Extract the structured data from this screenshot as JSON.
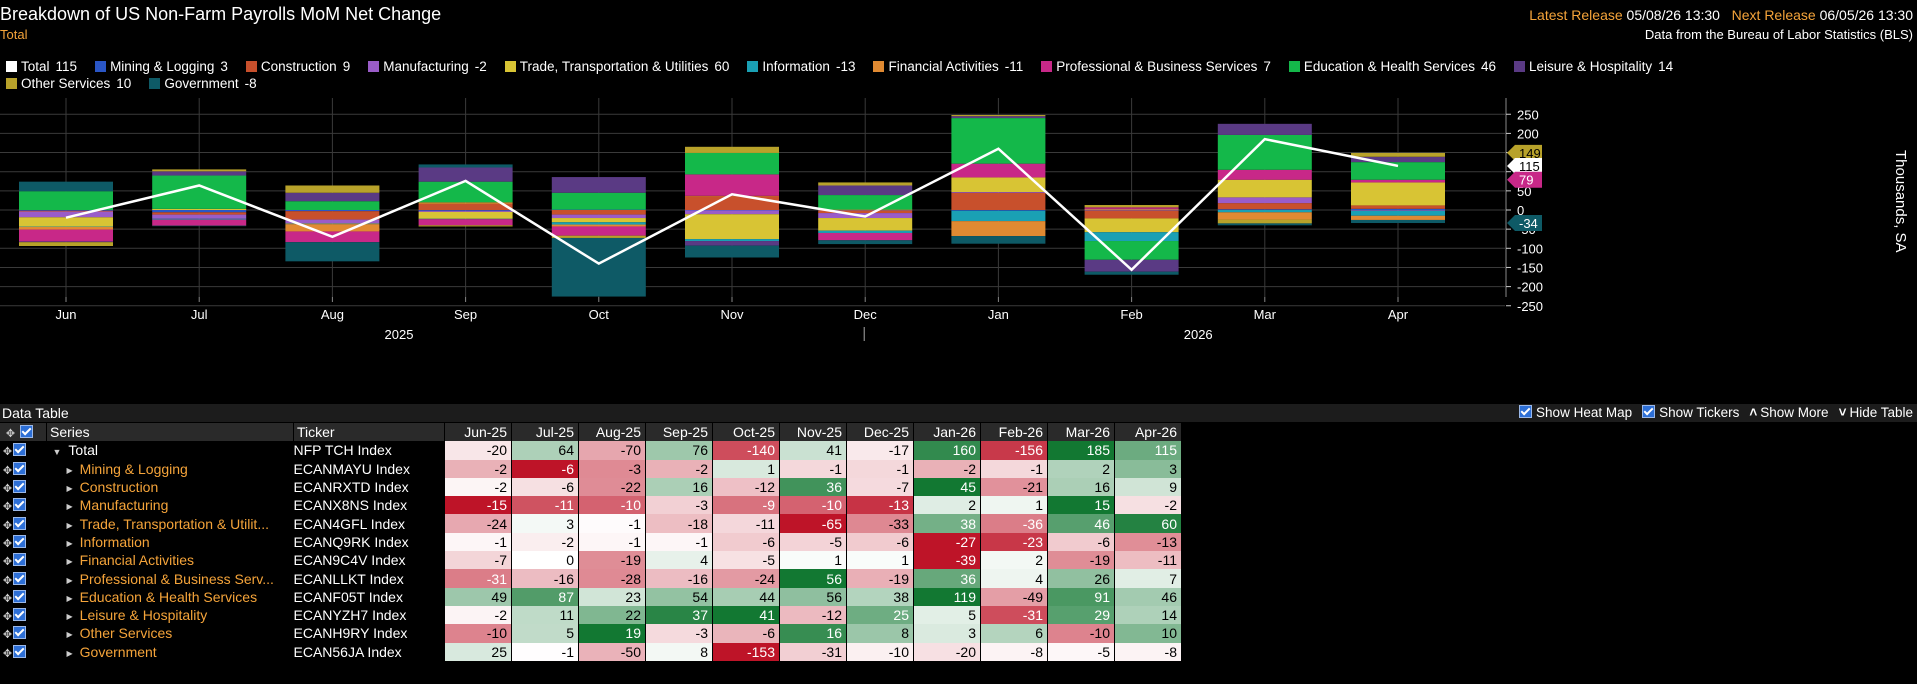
{
  "header": {
    "title": "Breakdown of US Non-Farm Payrolls MoM Net Change",
    "subtitle": "Total",
    "latest_label": "Latest Release",
    "latest_value": "05/08/26 13:30",
    "next_label": "Next Release",
    "next_value": "06/05/26 13:30",
    "source": "Data from the Bureau of Labor Statistics (BLS)"
  },
  "legend": [
    {
      "name": "Total",
      "value": "115",
      "color": "#ffffff"
    },
    {
      "name": "Mining & Logging",
      "value": "3",
      "color": "#2a56c6"
    },
    {
      "name": "Construction",
      "value": "9",
      "color": "#c8502c"
    },
    {
      "name": "Manufacturing",
      "value": "-2",
      "color": "#9a5cc8"
    },
    {
      "name": "Trade, Transportation & Utilities",
      "value": "60",
      "color": "#d8c434"
    },
    {
      "name": "Information",
      "value": "-13",
      "color": "#1aa0b4"
    },
    {
      "name": "Financial Activities",
      "value": "-11",
      "color": "#e08a32"
    },
    {
      "name": "Professional & Business Services",
      "value": "7",
      "color": "#c82888"
    },
    {
      "name": "Education & Health Services",
      "value": "46",
      "color": "#14b84a"
    },
    {
      "name": "Leisure & Hospitality",
      "value": "14",
      "color": "#5a3a84"
    },
    {
      "name": "Other Services",
      "value": "10",
      "color": "#b8a22a"
    },
    {
      "name": "Government",
      "value": "-8",
      "color": "#0e5a66"
    }
  ],
  "chart_data": {
    "type": "bar",
    "stacked": true,
    "categories": [
      "Jun",
      "Jul",
      "Aug",
      "Sep",
      "Oct",
      "Nov",
      "Dec",
      "Jan",
      "Feb",
      "Mar",
      "Apr"
    ],
    "year_labels": [
      {
        "label": "2025",
        "between": [
          "Aug",
          "Sep"
        ]
      },
      {
        "label": "2026",
        "between": [
          "Feb",
          "Mar"
        ]
      }
    ],
    "ylabel": "Thousands, SA",
    "ylim": [
      -260,
      260
    ],
    "yticks": [
      250,
      200,
      150,
      100,
      50,
      0,
      -50,
      -100,
      -150,
      -200,
      -250
    ],
    "ytick_labels": [
      "250",
      "200",
      "150",
      "100",
      "50",
      "0",
      "-50",
      "-100",
      "-150",
      "-200",
      "-250"
    ],
    "last_value_labels": [
      {
        "label": "149",
        "color": "#b8a22a",
        "text_color": "#000",
        "value": 149
      },
      {
        "label": "115",
        "color": "#ffffff",
        "text_color": "#000",
        "value": 115
      },
      {
        "label": "79",
        "color": "#c82888",
        "text_color": "#fff",
        "value": 79
      },
      {
        "label": "-34",
        "color": "#0e5a66",
        "text_color": "#fff",
        "value": -34
      }
    ],
    "line_series": {
      "name": "Total",
      "color": "#ffffff",
      "values": [
        -20,
        64,
        -70,
        76,
        -140,
        41,
        -17,
        160,
        -156,
        185,
        115
      ]
    },
    "series": [
      {
        "name": "Mining & Logging",
        "color": "#2a56c6",
        "values": [
          -2,
          -6,
          -3,
          -2,
          1,
          -1,
          -1,
          -2,
          -1,
          2,
          3
        ]
      },
      {
        "name": "Construction",
        "color": "#c8502c",
        "values": [
          -2,
          -6,
          -22,
          16,
          -12,
          36,
          -7,
          45,
          -21,
          16,
          9
        ]
      },
      {
        "name": "Manufacturing",
        "color": "#9a5cc8",
        "values": [
          -15,
          -11,
          -10,
          -3,
          -9,
          -10,
          -13,
          2,
          1,
          15,
          -2
        ]
      },
      {
        "name": "Trade, Transportation & Utilities",
        "color": "#d8c434",
        "values": [
          -24,
          3,
          -1,
          -18,
          -11,
          -65,
          -33,
          38,
          -36,
          46,
          60
        ]
      },
      {
        "name": "Information",
        "color": "#1aa0b4",
        "values": [
          -1,
          -2,
          -1,
          -1,
          -6,
          -5,
          -6,
          -27,
          -23,
          -6,
          -13
        ]
      },
      {
        "name": "Financial Activities",
        "color": "#e08a32",
        "values": [
          -7,
          0,
          -19,
          4,
          -5,
          1,
          1,
          -39,
          2,
          -19,
          -11
        ]
      },
      {
        "name": "Professional & Business Services",
        "color": "#c82888",
        "values": [
          -31,
          -16,
          -28,
          -16,
          -24,
          56,
          -19,
          36,
          4,
          26,
          7
        ]
      },
      {
        "name": "Education & Health Services",
        "color": "#14b84a",
        "values": [
          49,
          87,
          23,
          54,
          44,
          56,
          38,
          119,
          -49,
          91,
          46
        ]
      },
      {
        "name": "Leisure & Hospitality",
        "color": "#5a3a84",
        "values": [
          -2,
          11,
          22,
          37,
          41,
          -12,
          25,
          5,
          -31,
          29,
          14
        ]
      },
      {
        "name": "Other Services",
        "color": "#b8a22a",
        "values": [
          -10,
          5,
          19,
          -3,
          -6,
          16,
          8,
          3,
          6,
          -10,
          10
        ]
      },
      {
        "name": "Government",
        "color": "#0e5a66",
        "values": [
          25,
          -1,
          -50,
          8,
          -153,
          -31,
          -10,
          -20,
          -8,
          -5,
          -8
        ]
      }
    ]
  },
  "data_table": {
    "title": "Data Table",
    "controls": [
      {
        "label": "Show Heat Map",
        "type": "checkbox"
      },
      {
        "label": "Show Tickers",
        "type": "checkbox"
      },
      {
        "label": "Show More",
        "type": "chevron",
        "glyph": "˄"
      },
      {
        "label": "Hide Table",
        "type": "chevron",
        "glyph": "˅"
      }
    ],
    "col_series": "Series",
    "col_ticker": "Ticker",
    "months": [
      "Jun-25",
      "Jul-25",
      "Aug-25",
      "Sep-25",
      "Oct-25",
      "Nov-25",
      "Dec-25",
      "Jan-26",
      "Feb-26",
      "Mar-26",
      "Apr-26"
    ],
    "rows": [
      {
        "name": "Total",
        "ticker": "NFP TCH Index",
        "total": true,
        "values": [
          -20,
          64,
          -70,
          76,
          -140,
          41,
          -17,
          160,
          -156,
          185,
          115
        ]
      },
      {
        "name": "Mining & Logging",
        "ticker": "ECANMAYU Index",
        "values": [
          -2,
          -6,
          -3,
          -2,
          1,
          -1,
          -1,
          -2,
          -1,
          2,
          3
        ]
      },
      {
        "name": "Construction",
        "ticker": "ECANRXTD Index",
        "values": [
          -2,
          -6,
          -22,
          16,
          -12,
          36,
          -7,
          45,
          -21,
          16,
          9
        ]
      },
      {
        "name": "Manufacturing",
        "ticker": "ECANX8NS Index",
        "values": [
          -15,
          -11,
          -10,
          -3,
          -9,
          -10,
          -13,
          2,
          1,
          15,
          -2
        ]
      },
      {
        "name": "Trade, Transportation & Utilit...",
        "ticker": "ECAN4GFL Index",
        "values": [
          -24,
          3,
          -1,
          -18,
          -11,
          -65,
          -33,
          38,
          -36,
          46,
          60
        ]
      },
      {
        "name": "Information",
        "ticker": "ECANQ9RK Index",
        "values": [
          -1,
          -2,
          -1,
          -1,
          -6,
          -5,
          -6,
          -27,
          -23,
          -6,
          -13
        ]
      },
      {
        "name": "Financial Activities",
        "ticker": "ECAN9C4V Index",
        "values": [
          -7,
          0,
          -19,
          4,
          -5,
          1,
          1,
          -39,
          2,
          -19,
          -11
        ]
      },
      {
        "name": "Professional & Business Serv...",
        "ticker": "ECANLLKT Index",
        "values": [
          -31,
          -16,
          -28,
          -16,
          -24,
          56,
          -19,
          36,
          4,
          26,
          7
        ]
      },
      {
        "name": "Education & Health Services",
        "ticker": "ECANF05T Index",
        "values": [
          49,
          87,
          23,
          54,
          44,
          56,
          38,
          119,
          -49,
          91,
          46
        ]
      },
      {
        "name": "Leisure & Hospitality",
        "ticker": "ECANYZH7 Index",
        "values": [
          -2,
          11,
          22,
          37,
          41,
          -12,
          25,
          5,
          -31,
          29,
          14
        ]
      },
      {
        "name": "Other Services",
        "ticker": "ECANH9RY Index",
        "values": [
          -10,
          5,
          19,
          -3,
          -6,
          16,
          8,
          3,
          6,
          -10,
          10
        ]
      },
      {
        "name": "Government",
        "ticker": "ECAN56JA Index",
        "values": [
          25,
          -1,
          -50,
          8,
          -153,
          -31,
          -10,
          -20,
          -8,
          -5,
          -8
        ]
      }
    ]
  }
}
